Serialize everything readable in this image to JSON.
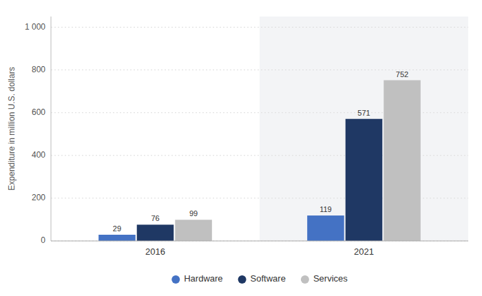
{
  "chart_data": {
    "type": "bar",
    "ylabel": "Expenditure in million U.S. dollars",
    "categories": [
      "2016",
      "2021"
    ],
    "series": [
      {
        "name": "Hardware",
        "color": "#4472C4",
        "values": [
          29,
          119
        ]
      },
      {
        "name": "Software",
        "color": "#1F3864",
        "values": [
          76,
          571
        ]
      },
      {
        "name": "Services",
        "color": "#C0C0C0",
        "values": [
          99,
          752
        ]
      }
    ],
    "ylim": [
      0,
      1050
    ],
    "yticks": [
      0,
      200,
      400,
      600,
      800,
      {
        "value": 1000,
        "label": "1 000"
      }
    ],
    "grid": true,
    "data_labels": true,
    "legend": "bottom"
  }
}
